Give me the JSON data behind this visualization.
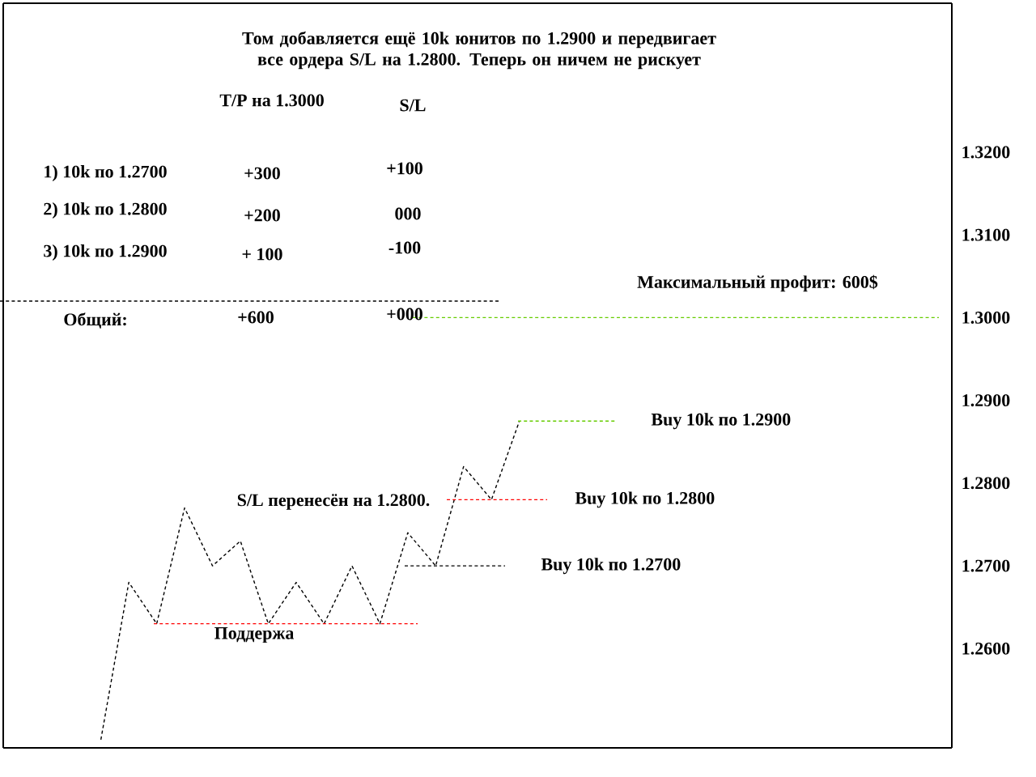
{
  "chart_data": {
    "type": "line",
    "title": "Том добавляется ещё 10k юнитов по 1.2900 и передвигает все ордера S/L на 1.2800. Теперь он ничем не рискует",
    "categories": [
      null,
      null,
      null,
      null,
      null,
      null,
      null,
      null,
      null,
      null,
      null,
      null,
      null,
      null,
      null,
      null,
      null,
      null,
      null,
      null,
      null,
      null,
      null,
      null,
      null,
      null,
      null,
      null,
      null,
      null,
      null,
      null,
      null,
      null
    ],
    "ylim": [
      1.248,
      1.338
    ],
    "yticks": [
      {
        "value": 1.26,
        "label": "1.2600"
      },
      {
        "value": 1.27,
        "label": "1.2700"
      },
      {
        "value": 1.28,
        "label": "1.2800"
      },
      {
        "value": 1.29,
        "label": "1.2900"
      },
      {
        "value": 1.3,
        "label": "1.3000"
      },
      {
        "value": 1.31,
        "label": "1.3100"
      },
      {
        "value": 1.32,
        "label": "1.3200"
      }
    ],
    "tick_labels": "y",
    "line_style": "dashed",
    "marker": "none",
    "grid": false,
    "series": [
      {
        "color": "#000000",
        "values": [
          null,
          null,
          null,
          1.249,
          1.268,
          1.263,
          1.277,
          1.27,
          1.273,
          1.263,
          1.268,
          1.263,
          1.27,
          1.263,
          1.274,
          1.27,
          1.282,
          1.278,
          1.2875,
          null,
          null,
          null,
          null,
          null,
          null,
          null,
          null,
          null,
          null,
          null,
          null,
          null,
          null,
          null
        ]
      }
    ],
    "ref_lines": [
      {
        "axis": "y",
        "value": 1.263,
        "label": "Поддержа",
        "color": "#ff0000",
        "line_style": "dashed"
      },
      {
        "axis": "y",
        "value": 1.27,
        "label": "Buy 10k по 1.2700",
        "color": "#000000",
        "line_style": "dashed"
      },
      {
        "axis": "y",
        "value": 1.278,
        "label": "Buy 10k по 1.2800",
        "color": "#ff0000",
        "line_style": "dashed"
      },
      {
        "axis": "y",
        "value": 1.2875,
        "label": "Buy 10k по 1.2900",
        "color": "#66cc00",
        "line_style": "dashed"
      },
      {
        "axis": "y",
        "value": 1.3,
        "color": "#66cc00",
        "line_style": "dashed"
      },
      {
        "axis": "y",
        "value": 1.302,
        "color": "#000000",
        "line_style": "dashed"
      }
    ],
    "annotations": [
      "S/L перенесён на 1.2800.",
      "Максимальный профит: 600$",
      "T/P на 1.3000",
      "S/L",
      "1) 10k по 1.2700",
      "+300",
      "+100",
      "2) 10k по 1.2800",
      "+200",
      "000",
      "3) 10k по 1.2900",
      "+ 100",
      "-100",
      "Общий:",
      "+600",
      "+000"
    ]
  }
}
